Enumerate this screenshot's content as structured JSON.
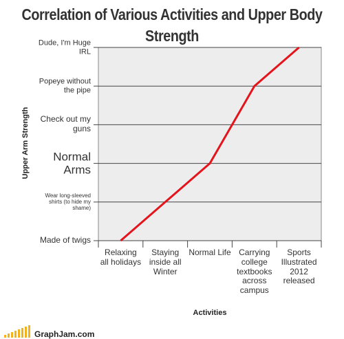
{
  "chart_data": {
    "type": "line",
    "title": "Correlation of Various Activities and  Upper Body Strength",
    "x_label": "Activities",
    "y_label": "Upper Arm Strength",
    "categories": [
      "Relaxing all holidays",
      "Staying inside all Winter",
      "Normal Life",
      "Carrying college textbooks across campus",
      "Sports Illustrated 2012 released"
    ],
    "values": [
      0,
      1,
      2,
      4,
      5
    ],
    "color": "#e3141b",
    "ylim": [
      0,
      5
    ],
    "yticks": [
      {
        "value": 0,
        "label": "Made of twigs"
      },
      {
        "value": 1,
        "label": "Wear long-sleeved shirts (to hide my shame)"
      },
      {
        "value": 2,
        "label": "Normal Arms"
      },
      {
        "value": 3,
        "label": "Check out my guns"
      },
      {
        "value": 4,
        "label": "Popeye without the pipe"
      },
      {
        "value": 5,
        "label": "Dude, I'm Huge IRL"
      }
    ],
    "grid": true
  },
  "footer": "GraphJam.com"
}
